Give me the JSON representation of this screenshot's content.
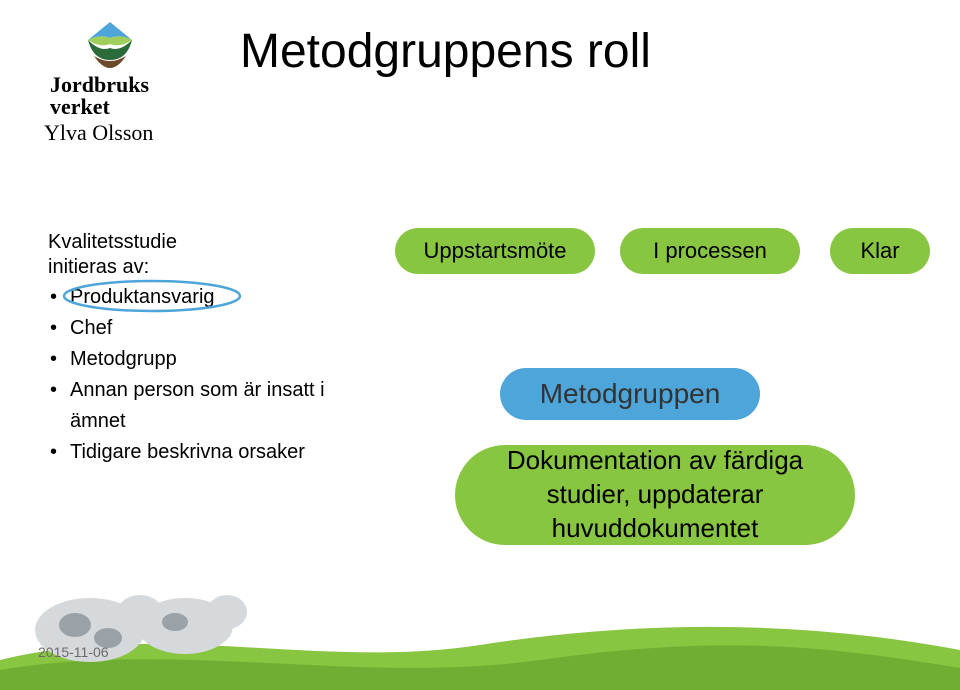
{
  "logo": {
    "line1": "Jordbruks",
    "line2": "verket",
    "mark_colors": {
      "sky": "#4ea5d9",
      "light_green": "#9fcf5a",
      "dark_green": "#2b6b3a",
      "brown": "#6b4a2a"
    }
  },
  "presenter": "Ylva Olsson",
  "title": "Metodgruppens roll",
  "left": {
    "lead_line1": "Kvalitetsstudie",
    "lead_line2": "initieras av:",
    "bullets": [
      "Produktansvarig",
      "Chef",
      "Metodgrupp",
      "Annan person som är insatt i ämnet",
      "Tidigare beskrivna orsaker"
    ],
    "circled_index": 0
  },
  "pills": {
    "p1": {
      "text": "Uppstartsmöte",
      "bg": "#88c540"
    },
    "p2": {
      "text": "I processen",
      "bg": "#88c540"
    },
    "p3": {
      "text": "Klar",
      "bg": "#88c540"
    },
    "p4": {
      "text": "Metodgruppen",
      "bg": "#4ea5d9"
    },
    "p5": {
      "line1": "Dokumentation av färdiga",
      "line2": "studier, uppdaterar",
      "line3": "huvuddokumentet",
      "bg": "#88c540"
    }
  },
  "circle_stroke": "#4ea5d9",
  "date": "2015-11-06",
  "footer_colors": {
    "grass": "#88c540",
    "grass_dark": "#6aa62f",
    "cow_body": "#d5d9dc",
    "cow_spot": "#9aa1a7"
  },
  "pill_text_color": "#000000"
}
